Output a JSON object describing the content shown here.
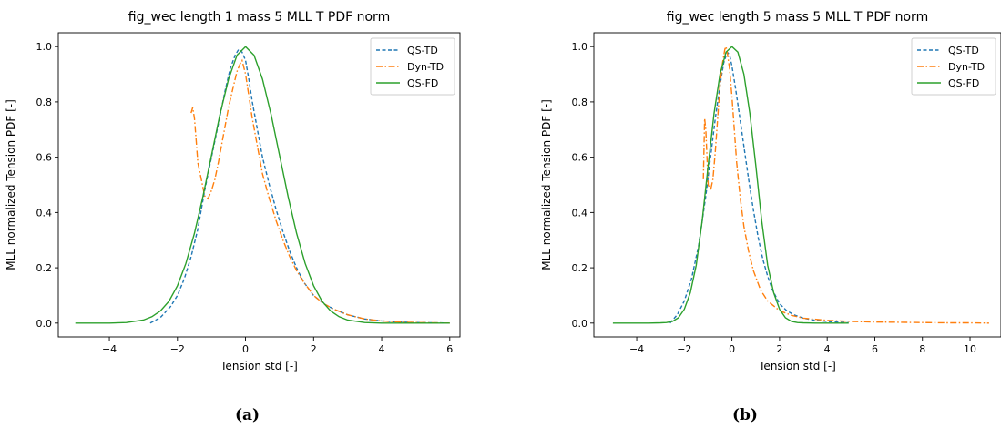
{
  "chart_data": [
    {
      "type": "line",
      "title": "fig_wec length 1 mass 5 MLL T PDF norm",
      "xlabel": "Tension std [-]",
      "ylabel": "MLL normalized Tension PDF [-]",
      "xlim": [
        -5.5,
        6.3
      ],
      "ylim": [
        -0.05,
        1.05
      ],
      "xticks": [
        -4,
        -2,
        0,
        2,
        4,
        6
      ],
      "xtick_labels": [
        "−4",
        "−2",
        "0",
        "2",
        "4",
        "6"
      ],
      "yticks": [
        0.0,
        0.2,
        0.4,
        0.6,
        0.8,
        1.0
      ],
      "ytick_labels": [
        "0.0",
        "0.2",
        "0.4",
        "0.6",
        "0.8",
        "1.0"
      ],
      "grid": false,
      "legend_position": "top-right",
      "caption": "(a)",
      "series": [
        {
          "name": "QS-TD",
          "color": "#1f77b4",
          "dash": "dashed",
          "x": [
            -2.8,
            -2.5,
            -2.2,
            -2.0,
            -1.8,
            -1.6,
            -1.4,
            -1.2,
            -1.0,
            -0.8,
            -0.6,
            -0.45,
            -0.3,
            -0.2,
            -0.1,
            0.0,
            0.1,
            0.2,
            0.35,
            0.5,
            0.7,
            0.9,
            1.1,
            1.3,
            1.5,
            1.7,
            2.0,
            2.3,
            2.6,
            3.0,
            3.5,
            4.0,
            4.5,
            5.0,
            5.5,
            6.0
          ],
          "y": [
            0.0,
            0.02,
            0.06,
            0.1,
            0.16,
            0.24,
            0.34,
            0.48,
            0.6,
            0.72,
            0.84,
            0.92,
            0.97,
            0.99,
            0.98,
            0.95,
            0.88,
            0.8,
            0.7,
            0.6,
            0.5,
            0.41,
            0.33,
            0.26,
            0.2,
            0.15,
            0.1,
            0.07,
            0.05,
            0.03,
            0.015,
            0.008,
            0.004,
            0.002,
            0.001,
            0.0
          ]
        },
        {
          "name": "Dyn-TD",
          "color": "#ff7f0e",
          "dash": "dashdot",
          "x": [
            -1.6,
            -1.55,
            -1.5,
            -1.45,
            -1.4,
            -1.3,
            -1.2,
            -1.1,
            -1.0,
            -0.9,
            -0.8,
            -0.65,
            -0.5,
            -0.35,
            -0.25,
            -0.15,
            -0.1,
            0.0,
            0.1,
            0.2,
            0.35,
            0.5,
            0.7,
            0.9,
            1.1,
            1.3,
            1.5,
            1.7,
            2.0,
            2.3,
            2.6,
            3.0,
            3.5,
            4.0,
            4.5,
            5.0,
            5.5,
            6.0
          ],
          "y": [
            0.76,
            0.78,
            0.74,
            0.66,
            0.58,
            0.52,
            0.46,
            0.45,
            0.48,
            0.52,
            0.58,
            0.68,
            0.78,
            0.86,
            0.91,
            0.94,
            0.95,
            0.9,
            0.82,
            0.74,
            0.64,
            0.54,
            0.45,
            0.37,
            0.3,
            0.24,
            0.19,
            0.15,
            0.1,
            0.07,
            0.05,
            0.03,
            0.015,
            0.008,
            0.004,
            0.002,
            0.001,
            0.0
          ]
        },
        {
          "name": "QS-FD",
          "color": "#2ca02c",
          "dash": "solid",
          "x": [
            -5.0,
            -4.5,
            -4.0,
            -3.5,
            -3.0,
            -2.75,
            -2.5,
            -2.25,
            -2.0,
            -1.75,
            -1.5,
            -1.25,
            -1.0,
            -0.75,
            -0.5,
            -0.25,
            0.0,
            0.25,
            0.5,
            0.75,
            1.0,
            1.25,
            1.5,
            1.75,
            2.0,
            2.25,
            2.5,
            2.75,
            3.0,
            3.5,
            4.0,
            4.5,
            5.0,
            5.5,
            6.0
          ],
          "y": [
            0.0,
            0.0,
            0.0,
            0.002,
            0.011,
            0.023,
            0.044,
            0.079,
            0.135,
            0.216,
            0.325,
            0.458,
            0.607,
            0.755,
            0.882,
            0.969,
            1.0,
            0.969,
            0.882,
            0.755,
            0.607,
            0.458,
            0.325,
            0.216,
            0.135,
            0.079,
            0.044,
            0.023,
            0.011,
            0.002,
            0.0,
            0.0,
            0.0,
            0.0,
            0.0
          ]
        }
      ]
    },
    {
      "type": "line",
      "title": "fig_wec length 5 mass 5 MLL T PDF norm",
      "xlabel": "Tension std [-]",
      "ylabel": "MLL normalized Tension PDF [-]",
      "xlim": [
        -5.8,
        11.3
      ],
      "ylim": [
        -0.05,
        1.05
      ],
      "xticks": [
        -4,
        -2,
        0,
        2,
        4,
        6,
        8,
        10
      ],
      "xtick_labels": [
        "−4",
        "−2",
        "0",
        "2",
        "4",
        "6",
        "8",
        "10"
      ],
      "yticks": [
        0.0,
        0.2,
        0.4,
        0.6,
        0.8,
        1.0
      ],
      "ytick_labels": [
        "0.0",
        "0.2",
        "0.4",
        "0.6",
        "0.8",
        "1.0"
      ],
      "grid": false,
      "legend_position": "top-right",
      "caption": "(b)",
      "series": [
        {
          "name": "QS-TD",
          "color": "#1f77b4",
          "dash": "dashed",
          "x": [
            -2.6,
            -2.3,
            -2.0,
            -1.7,
            -1.4,
            -1.1,
            -0.9,
            -0.7,
            -0.5,
            -0.35,
            -0.2,
            -0.1,
            0.0,
            0.15,
            0.3,
            0.5,
            0.7,
            0.9,
            1.1,
            1.3,
            1.5,
            1.7,
            2.0,
            2.3,
            2.6,
            3.0,
            3.5,
            4.0,
            4.5,
            4.9
          ],
          "y": [
            0.0,
            0.03,
            0.08,
            0.16,
            0.28,
            0.46,
            0.6,
            0.74,
            0.86,
            0.94,
            0.98,
            0.97,
            0.93,
            0.85,
            0.76,
            0.64,
            0.52,
            0.41,
            0.31,
            0.23,
            0.17,
            0.12,
            0.07,
            0.045,
            0.03,
            0.018,
            0.01,
            0.006,
            0.003,
            0.001
          ]
        },
        {
          "name": "Dyn-TD",
          "color": "#ff7f0e",
          "dash": "dashdot",
          "x": [
            -1.2,
            -1.15,
            -1.1,
            -1.05,
            -1.0,
            -0.9,
            -0.8,
            -0.7,
            -0.6,
            -0.5,
            -0.4,
            -0.3,
            -0.25,
            -0.2,
            -0.1,
            0.0,
            0.1,
            0.2,
            0.35,
            0.5,
            0.7,
            0.9,
            1.2,
            1.5,
            2.0,
            2.5,
            3.0,
            4.0,
            5.0,
            6.0,
            7.0,
            8.0,
            9.0,
            10.0,
            10.8
          ],
          "y": [
            0.52,
            0.74,
            0.7,
            0.6,
            0.5,
            0.48,
            0.52,
            0.62,
            0.74,
            0.86,
            0.94,
            0.99,
            1.0,
            0.98,
            0.92,
            0.82,
            0.7,
            0.58,
            0.45,
            0.35,
            0.26,
            0.19,
            0.12,
            0.08,
            0.045,
            0.028,
            0.018,
            0.01,
            0.006,
            0.004,
            0.003,
            0.002,
            0.001,
            0.001,
            0.0
          ]
        },
        {
          "name": "QS-FD",
          "color": "#2ca02c",
          "dash": "solid",
          "x": [
            -5.0,
            -4.5,
            -4.0,
            -3.5,
            -3.0,
            -2.75,
            -2.5,
            -2.25,
            -2.0,
            -1.75,
            -1.5,
            -1.25,
            -1.0,
            -0.75,
            -0.5,
            -0.25,
            0.0,
            0.25,
            0.5,
            0.75,
            1.0,
            1.25,
            1.5,
            1.75,
            2.0,
            2.25,
            2.5,
            2.75,
            3.0,
            3.5,
            4.0,
            4.5,
            4.9
          ],
          "y": [
            0.0,
            0.0,
            0.0,
            0.0,
            0.001,
            0.002,
            0.006,
            0.019,
            0.05,
            0.11,
            0.21,
            0.37,
            0.57,
            0.76,
            0.9,
            0.98,
            1.0,
            0.98,
            0.9,
            0.76,
            0.57,
            0.37,
            0.21,
            0.11,
            0.05,
            0.019,
            0.006,
            0.002,
            0.001,
            0.0,
            0.0,
            0.0,
            0.0
          ]
        }
      ]
    }
  ]
}
